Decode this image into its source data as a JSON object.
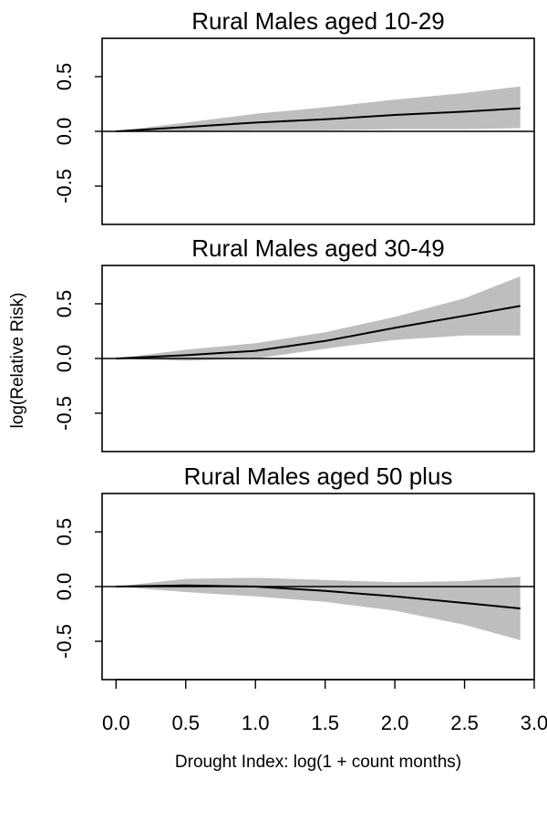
{
  "chart_data": {
    "type": "line",
    "ylabel": "log(Relative Risk)",
    "xlabel": "Drought Index: log(1 + count months)",
    "xlim": [
      -0.1,
      3.0
    ],
    "ylim": [
      -0.85,
      0.85
    ],
    "x_ticks": [
      0.0,
      0.5,
      1.0,
      1.5,
      2.0,
      2.5,
      3.0
    ],
    "x_tick_labels": [
      "0.0",
      "0.5",
      "1.0",
      "1.5",
      "2.0",
      "2.5",
      "3.0"
    ],
    "y_ticks": [
      -0.5,
      0.0,
      0.5
    ],
    "y_tick_labels": [
      "-0.5",
      "0.0",
      "0.5"
    ],
    "reference_line_y": 0,
    "band_color": "#bebebe",
    "line_color": "#000000",
    "panels": [
      {
        "title": "Rural Males aged 10-29",
        "x": [
          0.0,
          0.5,
          1.0,
          1.5,
          2.0,
          2.5,
          2.9
        ],
        "y": [
          0.0,
          0.04,
          0.08,
          0.11,
          0.15,
          0.18,
          0.21
        ],
        "lower": [
          0.0,
          0.0,
          0.01,
          0.01,
          0.02,
          0.02,
          0.03
        ],
        "upper": [
          0.0,
          0.08,
          0.16,
          0.22,
          0.29,
          0.35,
          0.41
        ]
      },
      {
        "title": "Rural Males aged 30-49",
        "x": [
          0.0,
          0.5,
          1.0,
          1.5,
          2.0,
          2.5,
          2.9
        ],
        "y": [
          0.0,
          0.03,
          0.07,
          0.16,
          0.28,
          0.39,
          0.48
        ],
        "lower": [
          0.0,
          -0.02,
          0.0,
          0.09,
          0.17,
          0.21,
          0.21
        ],
        "upper": [
          0.0,
          0.08,
          0.14,
          0.24,
          0.38,
          0.55,
          0.75
        ]
      },
      {
        "title": "Rural Males aged 50 plus",
        "x": [
          0.0,
          0.5,
          1.0,
          1.5,
          2.0,
          2.5,
          2.9
        ],
        "y": [
          0.0,
          0.01,
          0.0,
          -0.04,
          -0.09,
          -0.15,
          -0.2
        ],
        "lower": [
          0.0,
          -0.05,
          -0.09,
          -0.14,
          -0.22,
          -0.35,
          -0.49
        ],
        "upper": [
          0.0,
          0.07,
          0.08,
          0.06,
          0.04,
          0.05,
          0.09
        ]
      }
    ]
  }
}
